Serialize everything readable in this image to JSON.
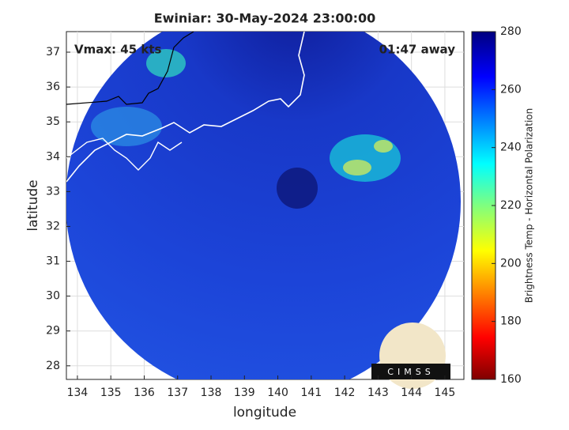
{
  "chart_data": {
    "type": "map",
    "title": "Ewiniar: 30-May-2024 23:00:00",
    "annotations": [
      "Vmax: 45 kts",
      "01:47 away"
    ],
    "x_label": "longitude",
    "y_label": "latitude",
    "xlim": [
      133.67,
      145.57
    ],
    "ylim": [
      27.61,
      37.59
    ],
    "xticks": [
      134,
      135,
      136,
      137,
      138,
      139,
      140,
      141,
      142,
      143,
      144,
      145
    ],
    "yticks": [
      28,
      29,
      30,
      31,
      32,
      33,
      34,
      35,
      36,
      37
    ],
    "grid": true,
    "colorbar": {
      "label": "Brightness Temp - Horizontal Polarization",
      "lim": [
        160,
        280
      ],
      "ticks": [
        160,
        180,
        200,
        220,
        240,
        260,
        280
      ]
    },
    "logo_text": "CIMSS"
  }
}
